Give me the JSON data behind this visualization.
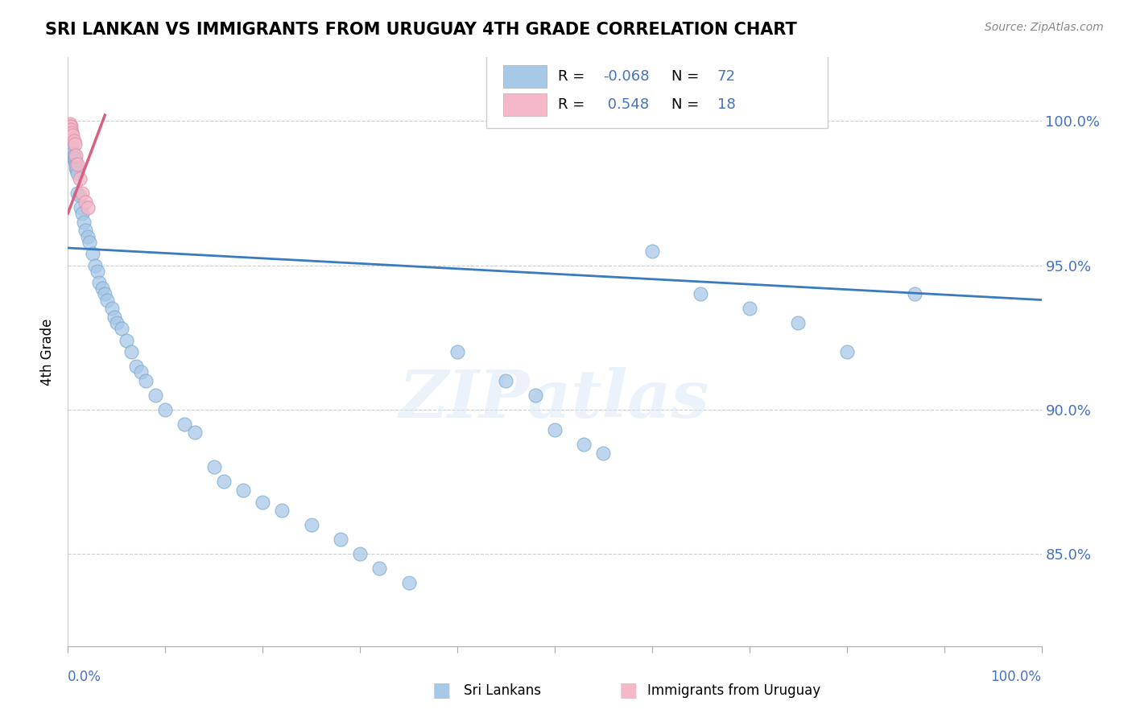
{
  "title": "SRI LANKAN VS IMMIGRANTS FROM URUGUAY 4TH GRADE CORRELATION CHART",
  "source_text": "Source: ZipAtlas.com",
  "ylabel": "4th Grade",
  "watermark": "ZIPatlas",
  "legend_blue_R": "-0.068",
  "legend_blue_N": "72",
  "legend_pink_R": "0.548",
  "legend_pink_N": "18",
  "blue_color": "#a8c8e8",
  "pink_color": "#f4b8c8",
  "blue_line_color": "#3a7abf",
  "pink_line_color": "#d96080",
  "ytick_labels": [
    "85.0%",
    "90.0%",
    "95.0%",
    "100.0%"
  ],
  "ytick_values": [
    0.85,
    0.9,
    0.95,
    1.0
  ],
  "xlim": [
    0.0,
    1.0
  ],
  "ylim": [
    0.818,
    1.022
  ],
  "blue_trend": [
    0.0,
    1.0,
    0.956,
    0.938
  ],
  "pink_trend": [
    0.0,
    0.038,
    0.968,
    1.002
  ],
  "blue_x": [
    0.001,
    0.001,
    0.001,
    0.002,
    0.002,
    0.002,
    0.002,
    0.003,
    0.003,
    0.003,
    0.004,
    0.004,
    0.005,
    0.005,
    0.006,
    0.006,
    0.007,
    0.007,
    0.008,
    0.008,
    0.009,
    0.01,
    0.01,
    0.012,
    0.013,
    0.015,
    0.016,
    0.018,
    0.02,
    0.022,
    0.025,
    0.028,
    0.03,
    0.032,
    0.035,
    0.038,
    0.04,
    0.045,
    0.048,
    0.05,
    0.055,
    0.06,
    0.065,
    0.07,
    0.075,
    0.08,
    0.09,
    0.1,
    0.12,
    0.13,
    0.15,
    0.16,
    0.18,
    0.2,
    0.22,
    0.25,
    0.28,
    0.3,
    0.32,
    0.35,
    0.4,
    0.45,
    0.48,
    0.5,
    0.53,
    0.55,
    0.6,
    0.65,
    0.7,
    0.75,
    0.8,
    0.87
  ],
  "blue_y": [
    0.998,
    0.997,
    0.995,
    0.996,
    0.995,
    0.994,
    0.993,
    0.994,
    0.993,
    0.992,
    0.991,
    0.99,
    0.99,
    0.989,
    0.988,
    0.987,
    0.987,
    0.986,
    0.985,
    0.984,
    0.983,
    0.982,
    0.975,
    0.974,
    0.97,
    0.968,
    0.965,
    0.962,
    0.96,
    0.958,
    0.954,
    0.95,
    0.948,
    0.944,
    0.942,
    0.94,
    0.938,
    0.935,
    0.932,
    0.93,
    0.928,
    0.924,
    0.92,
    0.915,
    0.913,
    0.91,
    0.905,
    0.9,
    0.895,
    0.892,
    0.88,
    0.875,
    0.872,
    0.868,
    0.865,
    0.86,
    0.855,
    0.85,
    0.845,
    0.84,
    0.92,
    0.91,
    0.905,
    0.893,
    0.888,
    0.885,
    0.955,
    0.94,
    0.935,
    0.93,
    0.92,
    0.94
  ],
  "pink_x": [
    0.001,
    0.001,
    0.001,
    0.002,
    0.002,
    0.002,
    0.003,
    0.003,
    0.004,
    0.005,
    0.006,
    0.007,
    0.008,
    0.01,
    0.012,
    0.015,
    0.018,
    0.02
  ],
  "pink_y": [
    0.998,
    0.997,
    0.996,
    0.999,
    0.998,
    0.996,
    0.998,
    0.997,
    0.996,
    0.995,
    0.993,
    0.992,
    0.988,
    0.985,
    0.98,
    0.975,
    0.972,
    0.97
  ]
}
